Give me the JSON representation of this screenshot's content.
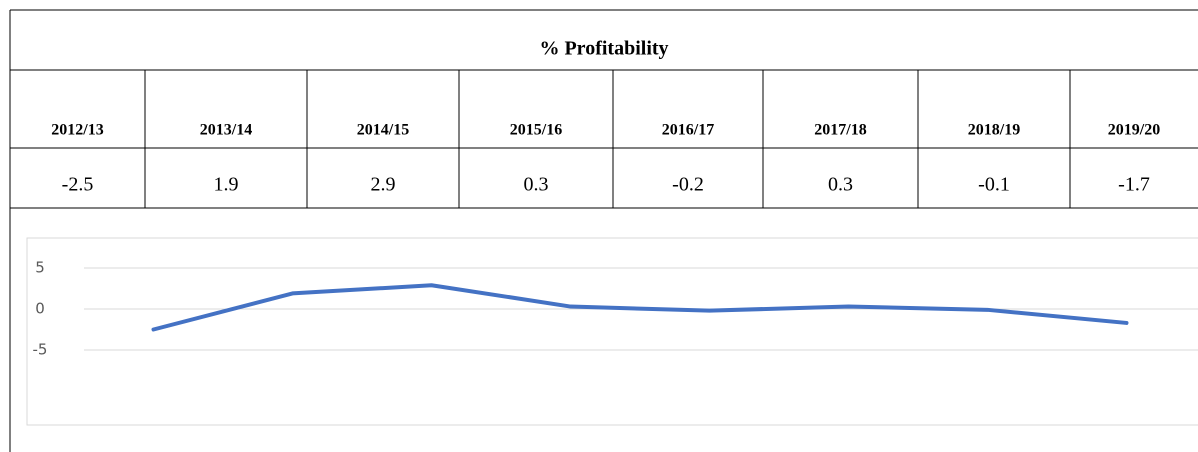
{
  "chart_data": {
    "type": "line",
    "title": "% Profitability",
    "categories": [
      "2012/13",
      "2013/14",
      "2014/15",
      "2015/16",
      "2016/17",
      "2017/18",
      "2018/19",
      "2019/20"
    ],
    "values": [
      -2.5,
      1.9,
      2.9,
      0.3,
      -0.2,
      0.3,
      -0.1,
      -1.7
    ],
    "color": "#4472c4",
    "ylim": [
      -5,
      5
    ],
    "yticks": [
      5,
      0,
      -5
    ],
    "grid": true
  }
}
